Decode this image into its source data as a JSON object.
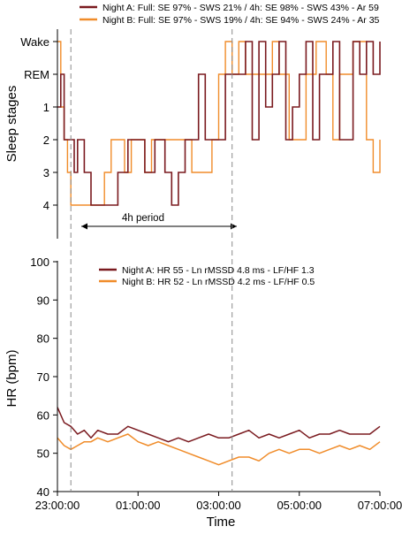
{
  "chart_data": [
    {
      "type": "line",
      "ylabel": "Sleep stages",
      "yticks": [
        "Wake",
        "REM",
        "1",
        "2",
        "3",
        "4"
      ],
      "xlim": [
        "23:00:00",
        "07:00:00"
      ],
      "annotation": "4h period",
      "markers": [
        "23:20:00",
        "03:20:00"
      ],
      "series": [
        {
          "name": "Night A: Full: SE 97% - SWS 21% / 4h: SE 98% - SWS 43% - Ar 59",
          "color": "#7a1a1f",
          "points": [
            [
              "23:00",
              "1"
            ],
            [
              "23:05",
              "REM"
            ],
            [
              "23:10",
              "2"
            ],
            [
              "23:15",
              "2"
            ],
            [
              "23:20",
              "2"
            ],
            [
              "23:25",
              "3"
            ],
            [
              "23:30",
              "2"
            ],
            [
              "23:40",
              "3"
            ],
            [
              "23:50",
              "4"
            ],
            [
              "00:00",
              "4"
            ],
            [
              "00:20",
              "4"
            ],
            [
              "00:30",
              "3"
            ],
            [
              "00:45",
              "2"
            ],
            [
              "01:00",
              "2"
            ],
            [
              "01:10",
              "3"
            ],
            [
              "01:25",
              "2"
            ],
            [
              "01:40",
              "3"
            ],
            [
              "01:50",
              "4"
            ],
            [
              "02:00",
              "3"
            ],
            [
              "02:10",
              "2"
            ],
            [
              "02:20",
              "2"
            ],
            [
              "02:30",
              "REM"
            ],
            [
              "02:40",
              "2"
            ],
            [
              "02:55",
              "2"
            ],
            [
              "03:00",
              "2"
            ],
            [
              "03:10",
              "REM"
            ],
            [
              "03:20",
              "REM"
            ],
            [
              "03:40",
              "Wake"
            ],
            [
              "03:50",
              "2"
            ],
            [
              "04:00",
              "Wake"
            ],
            [
              "04:10",
              "1"
            ],
            [
              "04:20",
              "REM"
            ],
            [
              "04:30",
              "Wake"
            ],
            [
              "04:40",
              "2"
            ],
            [
              "04:50",
              "1"
            ],
            [
              "05:00",
              "REM"
            ],
            [
              "05:10",
              "Wake"
            ],
            [
              "05:20",
              "2"
            ],
            [
              "05:30",
              "REM"
            ],
            [
              "05:50",
              "Wake"
            ],
            [
              "06:00",
              "2"
            ],
            [
              "06:20",
              "Wake"
            ],
            [
              "06:30",
              "REM"
            ],
            [
              "06:40",
              "Wake"
            ],
            [
              "06:50",
              "REM"
            ],
            [
              "07:00",
              "Wake"
            ]
          ]
        },
        {
          "name": "Night B: Full: SE 97% - SWS 19% / 4h: SE 94% - SWS 24% - Ar 35",
          "color": "#f08c2a",
          "points": [
            [
              "23:00",
              "Wake"
            ],
            [
              "23:05",
              "1"
            ],
            [
              "23:10",
              "2"
            ],
            [
              "23:15",
              "3"
            ],
            [
              "23:20",
              "4"
            ],
            [
              "23:30",
              "4"
            ],
            [
              "23:50",
              "4"
            ],
            [
              "00:00",
              "4"
            ],
            [
              "00:10",
              "3"
            ],
            [
              "00:20",
              "2"
            ],
            [
              "00:40",
              "3"
            ],
            [
              "00:50",
              "2"
            ],
            [
              "01:00",
              "2"
            ],
            [
              "01:10",
              "3"
            ],
            [
              "01:20",
              "2"
            ],
            [
              "01:40",
              "2"
            ],
            [
              "02:00",
              "2"
            ],
            [
              "02:20",
              "3"
            ],
            [
              "02:40",
              "3"
            ],
            [
              "02:50",
              "2"
            ],
            [
              "03:00",
              "REM"
            ],
            [
              "03:10",
              "Wake"
            ],
            [
              "03:20",
              "REM"
            ],
            [
              "03:30",
              "Wake"
            ],
            [
              "03:40",
              "REM"
            ],
            [
              "04:00",
              "REM"
            ],
            [
              "04:20",
              "Wake"
            ],
            [
              "04:30",
              "REM"
            ],
            [
              "04:45",
              "2"
            ],
            [
              "05:00",
              "2"
            ],
            [
              "05:10",
              "REM"
            ],
            [
              "05:25",
              "Wake"
            ],
            [
              "05:40",
              "REM"
            ],
            [
              "05:50",
              "2"
            ],
            [
              "06:00",
              "REM"
            ],
            [
              "06:20",
              "Wake"
            ],
            [
              "06:40",
              "2"
            ],
            [
              "06:50",
              "3"
            ],
            [
              "07:00",
              "2"
            ]
          ]
        }
      ]
    },
    {
      "type": "line",
      "xlabel": "Time",
      "ylabel": "HR (bpm)",
      "ylim": [
        40,
        100
      ],
      "yticks": [
        40,
        50,
        60,
        70,
        80,
        90,
        100
      ],
      "xticks": [
        "23:00:00",
        "01:00:00",
        "03:00:00",
        "05:00:00",
        "07:00:00"
      ],
      "xlim": [
        "23:00:00",
        "07:00:00"
      ],
      "series": [
        {
          "name": "Night A: HR 55 - Ln rMSSD 4.8 ms - LF/HF 1.3",
          "color": "#7a1a1f",
          "points": [
            [
              "23:00",
              62
            ],
            [
              "23:10",
              58
            ],
            [
              "23:20",
              57
            ],
            [
              "23:30",
              55
            ],
            [
              "23:40",
              56
            ],
            [
              "23:50",
              54
            ],
            [
              "00:00",
              56
            ],
            [
              "00:15",
              55
            ],
            [
              "00:30",
              55
            ],
            [
              "00:45",
              57
            ],
            [
              "01:00",
              56
            ],
            [
              "01:15",
              55
            ],
            [
              "01:30",
              54
            ],
            [
              "01:45",
              53
            ],
            [
              "02:00",
              54
            ],
            [
              "02:15",
              53
            ],
            [
              "02:30",
              54
            ],
            [
              "02:45",
              55
            ],
            [
              "03:00",
              54
            ],
            [
              "03:15",
              54
            ],
            [
              "03:30",
              55
            ],
            [
              "03:45",
              56
            ],
            [
              "04:00",
              54
            ],
            [
              "04:15",
              55
            ],
            [
              "04:30",
              54
            ],
            [
              "04:45",
              55
            ],
            [
              "05:00",
              56
            ],
            [
              "05:15",
              54
            ],
            [
              "05:30",
              55
            ],
            [
              "05:45",
              55
            ],
            [
              "06:00",
              56
            ],
            [
              "06:15",
              55
            ],
            [
              "06:30",
              55
            ],
            [
              "06:45",
              55
            ],
            [
              "07:00",
              57
            ]
          ]
        },
        {
          "name": "Night B: HR 52 - Ln rMSSD 4.2 ms - LF/HF 0.5",
          "color": "#f08c2a",
          "points": [
            [
              "23:00",
              54
            ],
            [
              "23:10",
              52
            ],
            [
              "23:20",
              51
            ],
            [
              "23:30",
              52
            ],
            [
              "23:40",
              53
            ],
            [
              "23:50",
              53
            ],
            [
              "00:00",
              54
            ],
            [
              "00:15",
              53
            ],
            [
              "00:30",
              54
            ],
            [
              "00:45",
              55
            ],
            [
              "01:00",
              53
            ],
            [
              "01:15",
              52
            ],
            [
              "01:30",
              53
            ],
            [
              "01:45",
              52
            ],
            [
              "02:00",
              51
            ],
            [
              "02:15",
              50
            ],
            [
              "02:30",
              49
            ],
            [
              "02:45",
              48
            ],
            [
              "03:00",
              47
            ],
            [
              "03:15",
              48
            ],
            [
              "03:30",
              49
            ],
            [
              "03:45",
              49
            ],
            [
              "04:00",
              48
            ],
            [
              "04:15",
              50
            ],
            [
              "04:30",
              51
            ],
            [
              "04:45",
              50
            ],
            [
              "05:00",
              51
            ],
            [
              "05:15",
              51
            ],
            [
              "05:30",
              50
            ],
            [
              "05:45",
              51
            ],
            [
              "06:00",
              52
            ],
            [
              "06:15",
              51
            ],
            [
              "06:30",
              52
            ],
            [
              "06:45",
              51
            ],
            [
              "07:00",
              53
            ]
          ]
        }
      ]
    }
  ]
}
